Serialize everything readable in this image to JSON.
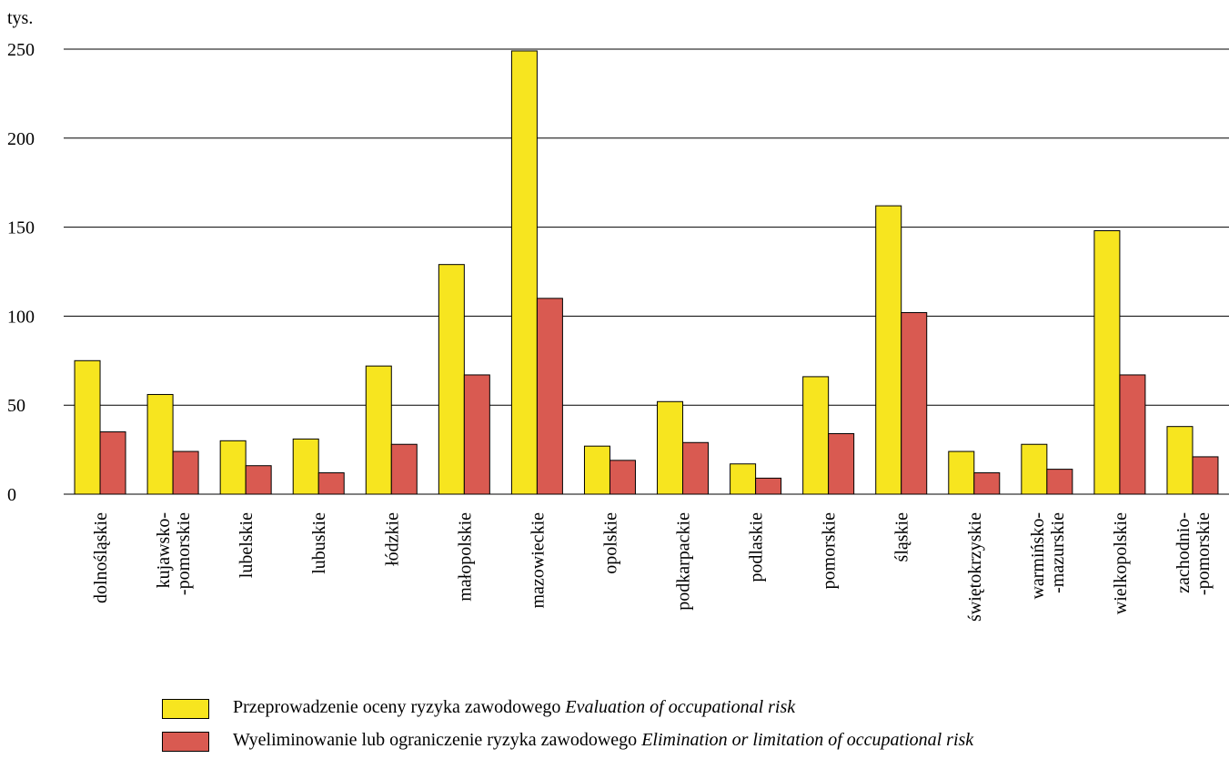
{
  "chart_data": {
    "type": "bar",
    "ylabel": "tys.",
    "ylim": [
      0,
      250
    ],
    "yticks": [
      0,
      50,
      100,
      150,
      200,
      250
    ],
    "grid": true,
    "legend_position": "bottom",
    "categories": [
      [
        "dolnośląskie"
      ],
      [
        "kujawsko-",
        "-pomorskie"
      ],
      [
        "lubelskie"
      ],
      [
        "lubuskie"
      ],
      [
        "łódzkie"
      ],
      [
        "małopolskie"
      ],
      [
        "mazowieckie"
      ],
      [
        "opolskie"
      ],
      [
        "podkarpackie"
      ],
      [
        "podlaskie"
      ],
      [
        "pomorskie"
      ],
      [
        "śląskie"
      ],
      [
        "świętokrzyskie"
      ],
      [
        "warmińsko-",
        "-mazurskie"
      ],
      [
        "wielkopolskie"
      ],
      [
        "zachodnio-",
        "-pomorskie"
      ]
    ],
    "series": [
      {
        "name": "Przeprowadzenie oceny ryzyka zawodowego Evaluation of occupational risk",
        "color": "#f7e51f",
        "values": [
          75,
          56,
          30,
          31,
          72,
          129,
          249,
          27,
          52,
          17,
          66,
          162,
          24,
          28,
          148,
          38
        ]
      },
      {
        "name": "Wyeliminowanie lub ograniczenie ryzyka zawodowego Elimination or limitation of occupational risk",
        "color": "#d95a51",
        "values": [
          35,
          24,
          16,
          12,
          28,
          67,
          110,
          19,
          29,
          9,
          34,
          102,
          12,
          14,
          67,
          21
        ]
      }
    ]
  },
  "legend": [
    {
      "pl": "Przeprowadzenie oceny ryzyka zawodowego",
      "en": "Evaluation of occupational risk"
    },
    {
      "pl": "Wyeliminowanie lub ograniczenie ryzyka zawodowego",
      "en": "Elimination or limitation of occupational risk"
    }
  ]
}
